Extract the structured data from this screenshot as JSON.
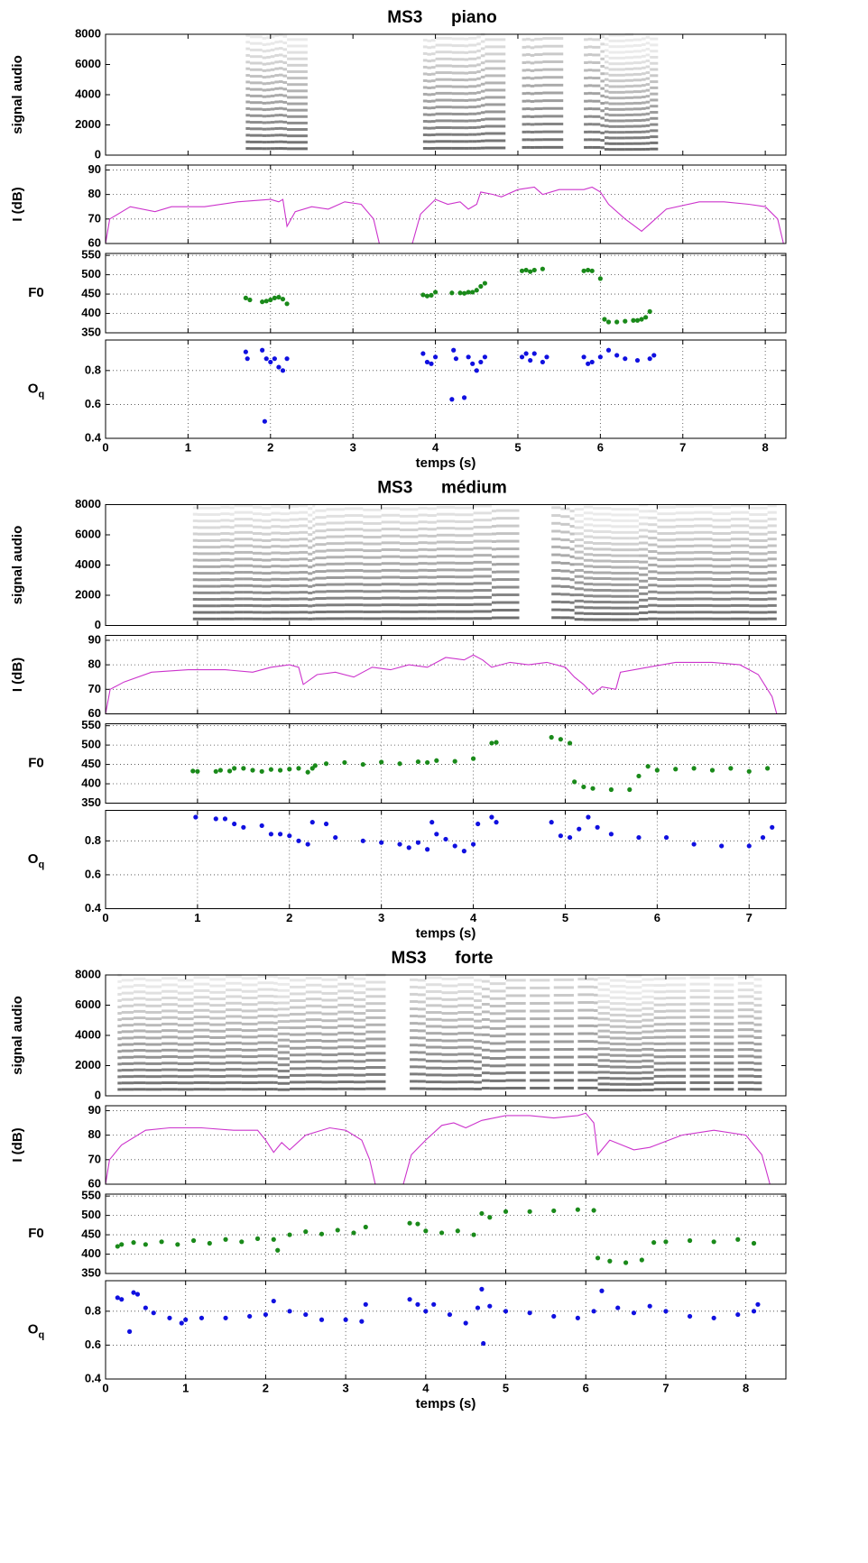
{
  "chart_data": [
    {
      "type": "spectrogram",
      "title": "MS3      piano",
      "ylabel": "signal audio",
      "ylim": [
        0,
        8000
      ],
      "yticks": [
        0,
        2000,
        4000,
        6000,
        8000
      ]
    },
    {
      "type": "line",
      "ylabel": "I (dB)",
      "color": "#cc33cc",
      "grid": true,
      "ylim": [
        60,
        92
      ],
      "yticks": [
        60,
        70,
        80,
        90
      ],
      "x": [
        0,
        0.05,
        0.3,
        0.6,
        0.8,
        1.2,
        1.6,
        2.0,
        2.1,
        2.15,
        2.2,
        2.3,
        2.5,
        2.7,
        2.9,
        3.1,
        3.25,
        3.32,
        3.5,
        3.72,
        3.82,
        4.0,
        4.15,
        4.3,
        4.4,
        4.5,
        4.55,
        4.7,
        4.8,
        5.0,
        5.2,
        5.3,
        5.5,
        5.8,
        5.9,
        6.0,
        6.1,
        6.3,
        6.5,
        6.6,
        6.8,
        7.2,
        7.5,
        7.8,
        8.0,
        8.15,
        8.22
      ],
      "values": [
        60,
        70,
        75,
        73,
        75,
        75,
        77,
        78,
        77,
        78,
        67,
        73,
        75,
        74,
        77,
        76,
        70,
        60,
        null,
        60,
        72,
        78,
        76,
        77,
        74,
        76,
        81,
        80,
        79,
        82,
        83,
        80,
        82,
        82,
        83,
        81,
        76,
        70,
        65,
        68,
        74,
        77,
        77,
        76,
        75,
        70,
        60
      ]
    },
    {
      "type": "scatter",
      "ylabel": "F0",
      "color": "#1a8a1a",
      "grid": true,
      "ylim": [
        350,
        555
      ],
      "yticks": [
        350,
        400,
        450,
        500,
        550
      ],
      "x": [
        1.7,
        1.75,
        1.9,
        1.95,
        2.0,
        2.05,
        2.1,
        2.15,
        2.2,
        3.85,
        3.9,
        3.95,
        4.0,
        4.2,
        4.3,
        4.35,
        4.4,
        4.45,
        4.5,
        4.55,
        4.6,
        5.05,
        5.1,
        5.15,
        5.2,
        5.3,
        5.8,
        5.85,
        5.9,
        6.0,
        6.05,
        6.1,
        6.2,
        6.3,
        6.4,
        6.45,
        6.5,
        6.55,
        6.6
      ],
      "values": [
        440,
        435,
        430,
        432,
        435,
        440,
        442,
        437,
        425,
        448,
        445,
        447,
        455,
        453,
        453,
        452,
        455,
        455,
        460,
        470,
        478,
        510,
        512,
        508,
        512,
        515,
        510,
        512,
        510,
        490,
        385,
        378,
        378,
        380,
        382,
        382,
        385,
        390,
        405
      ]
    },
    {
      "type": "scatter",
      "ylabel": "Oq",
      "ylabel_sub": true,
      "xlabel": "temps (s)",
      "color": "#1010e0",
      "grid": true,
      "xlim": [
        0,
        8.25
      ],
      "xticks": [
        0,
        1,
        2,
        3,
        4,
        5,
        6,
        7,
        8
      ],
      "ylim": [
        0.4,
        0.98
      ],
      "yticks": [
        0.4,
        0.6,
        0.8
      ],
      "x": [
        1.7,
        1.72,
        1.9,
        1.93,
        1.95,
        2.0,
        2.05,
        2.1,
        2.15,
        2.2,
        3.85,
        3.9,
        3.95,
        4.0,
        4.2,
        4.22,
        4.25,
        4.35,
        4.4,
        4.45,
        4.5,
        4.55,
        4.6,
        5.05,
        5.1,
        5.15,
        5.2,
        5.3,
        5.35,
        5.8,
        5.85,
        5.9,
        6.0,
        6.1,
        6.2,
        6.3,
        6.45,
        6.6,
        6.65
      ],
      "values": [
        0.91,
        0.87,
        0.92,
        0.5,
        0.87,
        0.85,
        0.87,
        0.82,
        0.8,
        0.87,
        0.9,
        0.85,
        0.84,
        0.88,
        0.63,
        0.92,
        0.87,
        0.64,
        0.88,
        0.84,
        0.8,
        0.85,
        0.88,
        0.88,
        0.9,
        0.86,
        0.9,
        0.85,
        0.88,
        0.88,
        0.84,
        0.85,
        0.88,
        0.92,
        0.89,
        0.87,
        0.86,
        0.87,
        0.89
      ]
    },
    {
      "type": "spectrogram",
      "title": "MS3      médium",
      "ylabel": "signal audio",
      "ylim": [
        0,
        8000
      ],
      "yticks": [
        0,
        2000,
        4000,
        6000,
        8000
      ]
    },
    {
      "type": "line",
      "ylabel": "I (dB)",
      "color": "#cc33cc",
      "grid": true,
      "ylim": [
        60,
        92
      ],
      "yticks": [
        60,
        70,
        80,
        90
      ],
      "x": [
        0,
        0.05,
        0.2,
        0.5,
        0.9,
        1.3,
        1.6,
        1.8,
        2.0,
        2.1,
        2.15,
        2.3,
        2.5,
        2.7,
        2.9,
        3.1,
        3.3,
        3.5,
        3.7,
        3.9,
        4.0,
        4.1,
        4.2,
        4.4,
        4.6,
        4.8,
        5.0,
        5.1,
        5.2,
        5.3,
        5.4,
        5.55,
        5.6,
        5.9,
        6.2,
        6.6,
        6.9,
        7.1,
        7.25,
        7.3
      ],
      "values": [
        60,
        70,
        73,
        77,
        78,
        78,
        77,
        79,
        80,
        79,
        72,
        76,
        77,
        75,
        79,
        78,
        80,
        79,
        83,
        82,
        84,
        82,
        79,
        81,
        80,
        81,
        79,
        75,
        72,
        68,
        71,
        70,
        77,
        79,
        81,
        81,
        80,
        76,
        67,
        60
      ]
    },
    {
      "type": "scatter",
      "ylabel": "F0",
      "color": "#1a8a1a",
      "grid": true,
      "ylim": [
        350,
        555
      ],
      "yticks": [
        350,
        400,
        450,
        500,
        550
      ],
      "x": [
        0.95,
        1.0,
        1.2,
        1.25,
        1.35,
        1.4,
        1.5,
        1.6,
        1.7,
        1.8,
        1.9,
        2.0,
        2.1,
        2.2,
        2.25,
        2.28,
        2.4,
        2.6,
        2.8,
        3.0,
        3.2,
        3.4,
        3.5,
        3.6,
        3.8,
        4.0,
        4.2,
        4.25,
        4.85,
        4.95,
        5.05,
        5.1,
        5.2,
        5.3,
        5.5,
        5.7,
        5.8,
        5.9,
        6.0,
        6.2,
        6.4,
        6.6,
        6.8,
        7.0,
        7.2
      ],
      "values": [
        433,
        432,
        432,
        435,
        433,
        440,
        440,
        435,
        432,
        437,
        435,
        438,
        440,
        430,
        440,
        447,
        452,
        455,
        450,
        456,
        452,
        457,
        455,
        460,
        458,
        465,
        505,
        507,
        520,
        515,
        505,
        405,
        392,
        388,
        385,
        385,
        420,
        445,
        435,
        438,
        440,
        435,
        440,
        432,
        440
      ]
    },
    {
      "type": "scatter",
      "ylabel": "Oq",
      "ylabel_sub": true,
      "xlabel": "temps (s)",
      "color": "#1010e0",
      "grid": true,
      "xlim": [
        0,
        7.4
      ],
      "xticks": [
        0,
        1,
        2,
        3,
        4,
        5,
        6,
        7
      ],
      "ylim": [
        0.4,
        0.98
      ],
      "yticks": [
        0.4,
        0.6,
        0.8
      ],
      "x": [
        0.98,
        1.2,
        1.3,
        1.4,
        1.5,
        1.7,
        1.8,
        1.9,
        2.0,
        2.1,
        2.2,
        2.25,
        2.4,
        2.5,
        2.8,
        3.0,
        3.2,
        3.3,
        3.4,
        3.5,
        3.55,
        3.6,
        3.7,
        3.8,
        3.9,
        4.0,
        4.05,
        4.2,
        4.25,
        4.85,
        4.95,
        5.05,
        5.15,
        5.25,
        5.35,
        5.5,
        5.8,
        6.1,
        6.4,
        6.7,
        7.0,
        7.15,
        7.25
      ],
      "values": [
        0.94,
        0.93,
        0.93,
        0.9,
        0.88,
        0.89,
        0.84,
        0.84,
        0.83,
        0.8,
        0.78,
        0.91,
        0.9,
        0.82,
        0.8,
        0.79,
        0.78,
        0.76,
        0.79,
        0.75,
        0.91,
        0.84,
        0.81,
        0.77,
        0.74,
        0.78,
        0.9,
        0.94,
        0.91,
        0.91,
        0.83,
        0.82,
        0.87,
        0.94,
        0.88,
        0.84,
        0.82,
        0.82,
        0.78,
        0.77,
        0.77,
        0.82,
        0.88
      ]
    },
    {
      "type": "spectrogram",
      "title": "MS3      forte",
      "ylabel": "signal audio",
      "ylim": [
        0,
        8000
      ],
      "yticks": [
        0,
        2000,
        4000,
        6000,
        8000
      ]
    },
    {
      "type": "line",
      "ylabel": "I (dB)",
      "color": "#cc33cc",
      "grid": true,
      "ylim": [
        60,
        92
      ],
      "yticks": [
        60,
        70,
        80,
        90
      ],
      "x": [
        0,
        0.05,
        0.2,
        0.5,
        0.8,
        1.2,
        1.6,
        1.9,
        2.0,
        2.1,
        2.2,
        2.3,
        2.5,
        2.8,
        3.0,
        3.2,
        3.3,
        3.37,
        3.55,
        3.72,
        3.82,
        4.0,
        4.2,
        4.35,
        4.5,
        4.7,
        5.0,
        5.3,
        5.6,
        5.9,
        6.0,
        6.1,
        6.15,
        6.3,
        6.6,
        6.8,
        7.2,
        7.6,
        8.0,
        8.2,
        8.3
      ],
      "values": [
        60,
        70,
        76,
        82,
        83,
        83,
        82,
        82,
        78,
        73,
        77,
        74,
        80,
        83,
        82,
        78,
        70,
        60,
        null,
        60,
        72,
        78,
        84,
        85,
        83,
        86,
        88,
        88,
        87,
        88,
        89,
        85,
        72,
        78,
        74,
        75,
        80,
        82,
        80,
        72,
        60
      ]
    },
    {
      "type": "scatter",
      "ylabel": "F0",
      "color": "#1a8a1a",
      "grid": true,
      "ylim": [
        350,
        555
      ],
      "yticks": [
        350,
        400,
        450,
        500,
        550
      ],
      "x": [
        0.15,
        0.2,
        0.35,
        0.5,
        0.7,
        0.9,
        1.1,
        1.3,
        1.5,
        1.7,
        1.9,
        2.1,
        2.15,
        2.3,
        2.5,
        2.7,
        2.9,
        3.1,
        3.25,
        3.8,
        3.9,
        4.0,
        4.2,
        4.4,
        4.6,
        4.7,
        4.8,
        5.0,
        5.3,
        5.6,
        5.9,
        6.1,
        6.15,
        6.3,
        6.5,
        6.7,
        6.85,
        7.0,
        7.3,
        7.6,
        7.9,
        8.1
      ],
      "values": [
        420,
        425,
        430,
        425,
        432,
        425,
        435,
        428,
        438,
        432,
        440,
        438,
        410,
        450,
        458,
        452,
        462,
        455,
        470,
        480,
        478,
        460,
        455,
        460,
        450,
        505,
        495,
        510,
        510,
        512,
        515,
        513,
        390,
        382,
        378,
        385,
        430,
        432,
        435,
        432,
        438,
        428
      ]
    },
    {
      "type": "scatter",
      "ylabel": "Oq",
      "ylabel_sub": true,
      "xlabel": "temps (s)",
      "color": "#1010e0",
      "grid": true,
      "xlim": [
        0,
        8.5
      ],
      "xticks": [
        0,
        1,
        2,
        3,
        4,
        5,
        6,
        7,
        8
      ],
      "ylim": [
        0.4,
        0.98
      ],
      "yticks": [
        0.4,
        0.6,
        0.8
      ],
      "x": [
        0.15,
        0.2,
        0.3,
        0.35,
        0.4,
        0.5,
        0.6,
        0.8,
        0.95,
        1.0,
        1.2,
        1.5,
        1.8,
        2.0,
        2.1,
        2.3,
        2.5,
        2.7,
        3.0,
        3.2,
        3.25,
        3.8,
        3.9,
        4.0,
        4.1,
        4.3,
        4.5,
        4.65,
        4.7,
        4.72,
        4.8,
        5.0,
        5.3,
        5.6,
        5.9,
        6.1,
        6.2,
        6.4,
        6.6,
        6.8,
        7.0,
        7.3,
        7.6,
        7.9,
        8.1,
        8.15
      ],
      "values": [
        0.88,
        0.87,
        0.68,
        0.91,
        0.9,
        0.82,
        0.79,
        0.76,
        0.73,
        0.75,
        0.76,
        0.76,
        0.77,
        0.78,
        0.86,
        0.8,
        0.78,
        0.75,
        0.75,
        0.74,
        0.84,
        0.87,
        0.84,
        0.8,
        0.84,
        0.78,
        0.73,
        0.82,
        0.93,
        0.61,
        0.83,
        0.8,
        0.79,
        0.77,
        0.76,
        0.8,
        0.92,
        0.82,
        0.79,
        0.83,
        0.8,
        0.77,
        0.76,
        0.78,
        0.8,
        0.84
      ]
    }
  ]
}
